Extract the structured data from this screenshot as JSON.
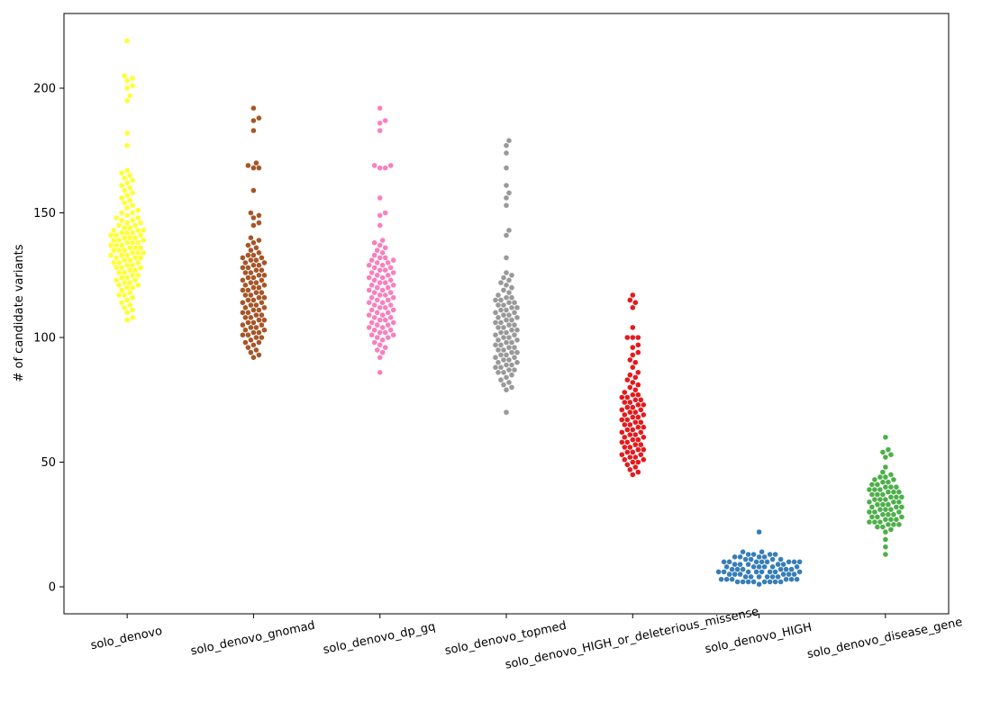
{
  "chart_data": {
    "type": "scatter",
    "subtype": "swarm",
    "title": "",
    "xlabel": "",
    "ylabel": "# of candidate variants",
    "ylim": [
      -11,
      230
    ],
    "yticks": [
      0,
      50,
      100,
      150,
      200
    ],
    "grid": false,
    "legend": "none",
    "categories": [
      "solo_denovo",
      "solo_denovo_gnomad",
      "solo_denovo_dp_gq",
      "solo_denovo_topmed",
      "solo_denovo_HIGH_or_deleterious_missense",
      "solo_denovo_HIGH",
      "solo_denovo_disease_gene"
    ],
    "colors": [
      "#ffff33",
      "#a65628",
      "#f781bf",
      "#999999",
      "#e41a1c",
      "#377eb8",
      "#4daf4a"
    ],
    "series": [
      {
        "name": "solo_denovo",
        "min": 107,
        "max": 219,
        "outliers": [
          219,
          205,
          204,
          203,
          201,
          200,
          197,
          195,
          182,
          177
        ],
        "values": [
          107,
          108,
          110,
          111,
          112,
          113,
          114,
          115,
          116,
          117,
          117,
          118,
          119,
          120,
          120,
          121,
          121,
          122,
          122,
          123,
          123,
          124,
          124,
          125,
          125,
          126,
          126,
          127,
          127,
          128,
          128,
          128,
          129,
          129,
          130,
          130,
          130,
          131,
          131,
          132,
          132,
          132,
          133,
          133,
          133,
          134,
          134,
          134,
          135,
          135,
          135,
          136,
          136,
          136,
          137,
          137,
          137,
          138,
          138,
          138,
          139,
          139,
          139,
          140,
          140,
          140,
          141,
          141,
          141,
          142,
          142,
          142,
          143,
          143,
          143,
          144,
          144,
          145,
          145,
          146,
          146,
          147,
          147,
          148,
          148,
          149,
          150,
          150,
          151,
          152,
          153,
          154,
          155,
          156,
          157,
          158,
          159,
          160,
          161,
          162,
          163,
          164,
          165,
          166,
          167,
          177,
          182,
          195,
          197,
          200,
          201,
          203,
          204,
          205,
          219
        ]
      },
      {
        "name": "solo_denovo_gnomad",
        "min": 92,
        "max": 192,
        "outliers": [
          192,
          188,
          187,
          183,
          170,
          169,
          168,
          168,
          159
        ],
        "values": [
          92,
          93,
          94,
          95,
          96,
          97,
          98,
          98,
          99,
          100,
          100,
          101,
          101,
          102,
          102,
          103,
          103,
          104,
          104,
          105,
          105,
          106,
          106,
          107,
          107,
          108,
          108,
          109,
          109,
          110,
          110,
          111,
          111,
          112,
          112,
          113,
          113,
          114,
          114,
          115,
          115,
          116,
          116,
          117,
          117,
          118,
          118,
          119,
          119,
          120,
          120,
          121,
          121,
          122,
          122,
          123,
          123,
          124,
          124,
          125,
          125,
          126,
          126,
          127,
          127,
          128,
          128,
          129,
          129,
          130,
          130,
          131,
          131,
          132,
          132,
          133,
          133,
          134,
          135,
          136,
          137,
          138,
          139,
          140,
          145,
          146,
          148,
          149,
          150,
          159,
          168,
          168,
          169,
          170,
          183,
          187,
          188,
          192
        ]
      },
      {
        "name": "solo_denovo_dp_gq",
        "min": 86,
        "max": 192,
        "outliers": [
          192,
          187,
          186,
          183,
          169,
          169,
          168,
          168,
          156,
          150,
          149
        ],
        "values": [
          86,
          92,
          94,
          95,
          96,
          97,
          98,
          99,
          100,
          100,
          101,
          101,
          102,
          102,
          103,
          103,
          104,
          104,
          105,
          105,
          106,
          106,
          107,
          107,
          108,
          108,
          109,
          109,
          110,
          110,
          111,
          111,
          112,
          112,
          113,
          113,
          114,
          114,
          115,
          115,
          116,
          116,
          117,
          117,
          118,
          118,
          119,
          119,
          120,
          120,
          121,
          121,
          122,
          122,
          123,
          123,
          124,
          124,
          125,
          125,
          126,
          126,
          127,
          127,
          128,
          128,
          129,
          129,
          130,
          130,
          131,
          131,
          132,
          132,
          133,
          134,
          135,
          136,
          137,
          138,
          139,
          145,
          149,
          150,
          156,
          168,
          168,
          169,
          169,
          183,
          186,
          187,
          192
        ]
      },
      {
        "name": "solo_denovo_topmed",
        "min": 70,
        "max": 179,
        "outliers": [
          179,
          177,
          174,
          168,
          161,
          158,
          156,
          153,
          143,
          141,
          132
        ],
        "values": [
          70,
          79,
          80,
          81,
          82,
          83,
          84,
          85,
          86,
          86,
          87,
          87,
          88,
          88,
          89,
          89,
          90,
          90,
          91,
          91,
          92,
          92,
          93,
          93,
          94,
          94,
          95,
          95,
          96,
          96,
          97,
          97,
          98,
          98,
          99,
          99,
          100,
          100,
          101,
          101,
          102,
          102,
          103,
          103,
          104,
          104,
          105,
          105,
          106,
          106,
          107,
          107,
          108,
          108,
          109,
          109,
          110,
          110,
          111,
          111,
          112,
          112,
          113,
          113,
          114,
          114,
          115,
          115,
          116,
          116,
          117,
          118,
          119,
          120,
          121,
          122,
          123,
          124,
          125,
          126,
          132,
          141,
          143,
          153,
          156,
          158,
          161,
          168,
          174,
          177,
          179
        ]
      },
      {
        "name": "solo_denovo_HIGH_or_deleterious_missense",
        "min": 45,
        "max": 117,
        "outliers": [
          117,
          115,
          114,
          112,
          104
        ],
        "values": [
          45,
          46,
          47,
          48,
          49,
          50,
          50,
          51,
          51,
          52,
          52,
          53,
          53,
          54,
          54,
          55,
          55,
          56,
          56,
          57,
          57,
          58,
          58,
          59,
          59,
          60,
          60,
          61,
          61,
          62,
          62,
          63,
          63,
          64,
          64,
          65,
          65,
          66,
          66,
          67,
          67,
          68,
          68,
          69,
          69,
          70,
          70,
          71,
          71,
          72,
          72,
          73,
          73,
          74,
          74,
          75,
          75,
          76,
          76,
          77,
          77,
          78,
          79,
          80,
          81,
          82,
          83,
          84,
          85,
          86,
          88,
          90,
          91,
          93,
          94,
          96,
          97,
          100,
          100,
          100,
          104,
          112,
          114,
          115,
          117
        ]
      },
      {
        "name": "solo_denovo_HIGH",
        "min": 1,
        "max": 22,
        "outliers": [
          22,
          14,
          14
        ],
        "values": [
          1,
          2,
          2,
          2,
          2,
          2,
          2,
          2,
          2,
          3,
          3,
          3,
          3,
          3,
          3,
          4,
          4,
          4,
          4,
          4,
          4,
          5,
          5,
          5,
          5,
          5,
          5,
          6,
          6,
          6,
          6,
          6,
          6,
          6,
          6,
          7,
          7,
          7,
          7,
          7,
          7,
          8,
          8,
          8,
          8,
          8,
          8,
          9,
          9,
          9,
          9,
          9,
          10,
          10,
          10,
          10,
          10,
          10,
          10,
          10,
          11,
          11,
          11,
          11,
          12,
          12,
          12,
          12,
          13,
          13,
          13,
          13,
          14,
          14,
          22
        ]
      },
      {
        "name": "solo_denovo_disease_gene",
        "min": 13,
        "max": 60,
        "outliers": [
          60,
          55,
          54,
          53,
          52,
          16,
          13
        ],
        "values": [
          13,
          16,
          19,
          22,
          23,
          24,
          24,
          25,
          25,
          25,
          26,
          26,
          26,
          27,
          27,
          27,
          28,
          28,
          28,
          29,
          29,
          29,
          30,
          30,
          30,
          31,
          31,
          31,
          32,
          32,
          32,
          33,
          33,
          33,
          34,
          34,
          34,
          35,
          35,
          35,
          36,
          36,
          36,
          37,
          37,
          37,
          38,
          38,
          38,
          39,
          39,
          39,
          40,
          40,
          40,
          41,
          41,
          42,
          42,
          43,
          43,
          44,
          44,
          45,
          46,
          48,
          52,
          53,
          54,
          55,
          60
        ]
      }
    ]
  }
}
